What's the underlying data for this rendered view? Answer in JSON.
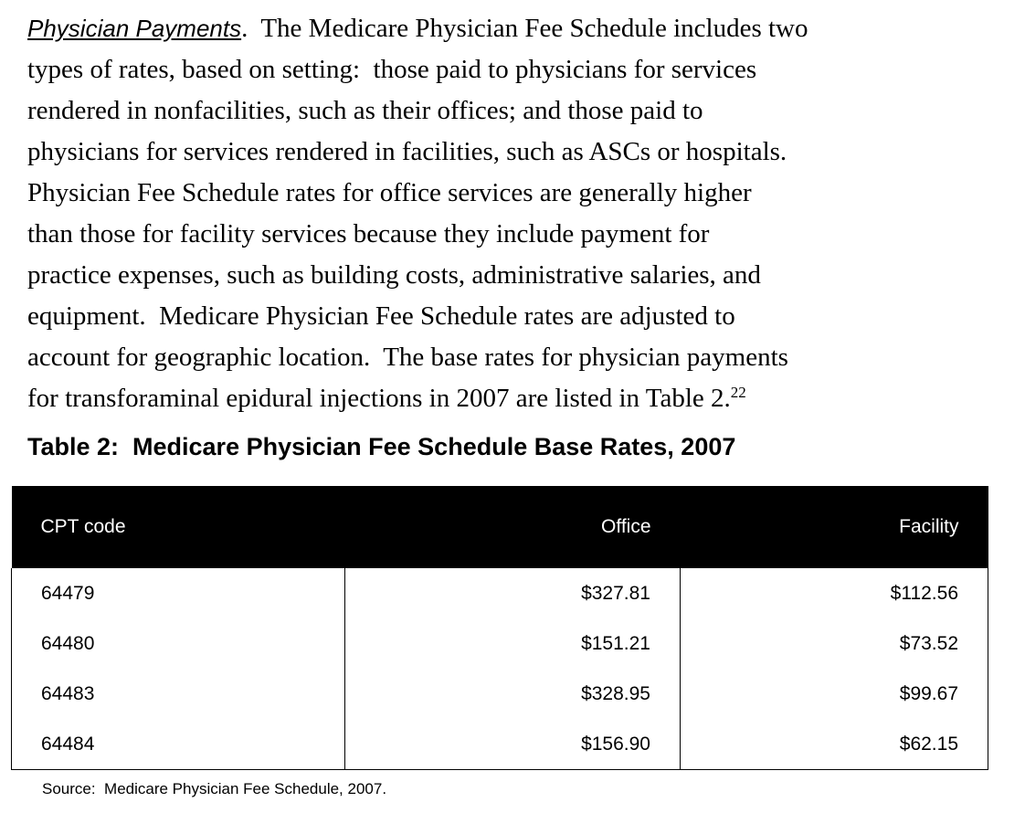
{
  "paragraph": {
    "heading": "Physician Payments",
    "lines": [
      ".  The Medicare Physician Fee Schedule includes two",
      "types of rates, based on setting:  those paid to physicians for services",
      "rendered in nonfacilities, such as their offices; and those paid to",
      "physicians for services rendered in facilities, such as ASCs or hospitals.",
      "Physician Fee Schedule rates for office services are generally higher",
      "than those for facility services because they include payment for",
      "practice expenses, such as building costs, administrative salaries, and",
      "equipment.  Medicare Physician Fee Schedule rates are adjusted to",
      "account for geographic location.  The base rates for physician payments",
      "for transforaminal epidural injections in 2007 are listed in Table 2."
    ],
    "footnote": "22"
  },
  "table": {
    "title": "Table 2:  Medicare Physician Fee Schedule Base Rates, 2007",
    "columns": [
      "CPT code",
      "Office",
      "Facility"
    ],
    "rows": [
      [
        "64479",
        "$327.81",
        "$112.56"
      ],
      [
        "64480",
        "$151.21",
        "$73.52"
      ],
      [
        "64483",
        "$328.95",
        "$99.67"
      ],
      [
        "64484",
        "$156.90",
        "$62.15"
      ]
    ],
    "source": "Source:  Medicare Physician Fee Schedule, 2007."
  }
}
